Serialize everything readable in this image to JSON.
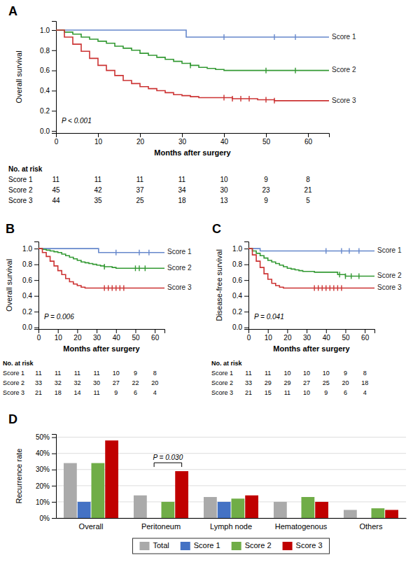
{
  "chart_data": [
    {
      "type": "line",
      "line_style": "step",
      "title": "A",
      "xlabel": "Months after surgery",
      "ylabel": "Overall survival",
      "annotations": [
        {
          "text": "P < 0.001"
        }
      ],
      "xlim": [
        0,
        65
      ],
      "ylim": [
        -0.02,
        1.09
      ],
      "xticks": [
        0,
        10,
        20,
        30,
        40,
        50,
        60
      ],
      "yticks": [
        {
          "value": 0.0,
          "label": "0.0"
        },
        0.2,
        0.4,
        0.6,
        0.8,
        {
          "value": 1.0,
          "label": "1.0"
        }
      ],
      "grid": false,
      "series": [
        {
          "name": "Score 1",
          "color": "#6688cc",
          "x": [
            0,
            30,
            31,
            60,
            65
          ],
          "values": [
            1.0,
            1.0,
            0.93,
            0.93,
            0.93
          ],
          "censors": [
            40,
            52,
            57
          ]
        },
        {
          "name": "Score 2",
          "color": "#339933",
          "x": [
            0,
            2,
            4,
            6,
            8,
            10,
            12,
            14,
            16,
            18,
            20,
            22,
            24,
            26,
            28,
            30,
            32,
            34,
            36,
            38,
            40,
            42,
            44,
            46,
            48,
            50,
            52,
            54,
            56,
            58,
            60,
            65
          ],
          "values": [
            1.0,
            0.98,
            0.96,
            0.93,
            0.91,
            0.89,
            0.87,
            0.84,
            0.82,
            0.8,
            0.77,
            0.75,
            0.73,
            0.71,
            0.69,
            0.67,
            0.65,
            0.63,
            0.62,
            0.61,
            0.6,
            0.6,
            0.6,
            0.6,
            0.6,
            0.6,
            0.6,
            0.6,
            0.6,
            0.6,
            0.6,
            0.6
          ],
          "censors": [
            32,
            50,
            57
          ]
        },
        {
          "name": "Score 3",
          "color": "#cc3333",
          "x": [
            0,
            2,
            4,
            6,
            8,
            10,
            12,
            14,
            16,
            18,
            20,
            22,
            24,
            26,
            28,
            30,
            32,
            34,
            36,
            38,
            40,
            42,
            44,
            46,
            48,
            50,
            52,
            54,
            56,
            58,
            60,
            65
          ],
          "values": [
            1.0,
            0.93,
            0.86,
            0.79,
            0.72,
            0.65,
            0.6,
            0.55,
            0.5,
            0.47,
            0.44,
            0.42,
            0.4,
            0.38,
            0.36,
            0.35,
            0.34,
            0.33,
            0.33,
            0.33,
            0.33,
            0.32,
            0.32,
            0.32,
            0.31,
            0.31,
            0.3,
            0.3,
            0.3,
            0.3,
            0.3,
            0.3
          ],
          "censors": [
            40,
            42,
            44,
            46,
            50,
            52
          ]
        }
      ],
      "at_risk": {
        "header": "No. at risk",
        "values": [
          [
            11,
            11,
            11,
            11,
            10,
            9,
            8
          ],
          [
            45,
            42,
            37,
            34,
            30,
            23,
            21
          ],
          [
            44,
            35,
            25,
            18,
            13,
            9,
            5
          ]
        ]
      }
    },
    {
      "type": "line",
      "line_style": "step",
      "title": "B",
      "xlabel": "Months after surgery",
      "ylabel": "Overall survival",
      "annotations": [
        {
          "text": "P = 0.006"
        }
      ],
      "xlim": [
        0,
        65
      ],
      "ylim": [
        -0.02,
        1.09
      ],
      "xticks": [
        0,
        10,
        20,
        30,
        40,
        50,
        60
      ],
      "yticks": [
        {
          "value": 0.0,
          "label": "0.0"
        },
        0.2,
        0.4,
        0.6,
        0.8,
        {
          "value": 1.0,
          "label": "1.0"
        }
      ],
      "grid": false,
      "series": [
        {
          "name": "Score 1",
          "color": "#6688cc",
          "x": [
            0,
            30,
            31,
            60,
            65
          ],
          "values": [
            1.0,
            1.0,
            0.95,
            0.95,
            0.95
          ],
          "censors": [
            40,
            52,
            57
          ]
        },
        {
          "name": "Score 2",
          "color": "#339933",
          "x": [
            0,
            2,
            4,
            6,
            8,
            10,
            12,
            14,
            16,
            18,
            20,
            22,
            24,
            26,
            28,
            30,
            32,
            34,
            36,
            38,
            40,
            42,
            44,
            46,
            48,
            50,
            52,
            54,
            56,
            58,
            60,
            65
          ],
          "values": [
            1.0,
            0.99,
            0.98,
            0.97,
            0.96,
            0.95,
            0.93,
            0.91,
            0.89,
            0.87,
            0.85,
            0.83,
            0.82,
            0.81,
            0.8,
            0.79,
            0.78,
            0.77,
            0.77,
            0.76,
            0.75,
            0.75,
            0.75,
            0.75,
            0.75,
            0.75,
            0.75,
            0.75,
            0.75,
            0.75,
            0.75,
            0.75
          ],
          "censors": [
            34,
            50,
            52,
            55
          ]
        },
        {
          "name": "Score 3",
          "color": "#cc3333",
          "x": [
            0,
            2,
            4,
            6,
            8,
            10,
            12,
            14,
            16,
            18,
            20,
            22,
            24,
            26,
            28,
            30,
            32,
            34,
            36,
            38,
            40,
            42,
            44,
            46,
            48,
            50,
            52,
            54,
            56,
            58,
            60,
            65
          ],
          "values": [
            1.0,
            0.95,
            0.9,
            0.84,
            0.78,
            0.72,
            0.67,
            0.62,
            0.58,
            0.55,
            0.53,
            0.51,
            0.5,
            0.5,
            0.5,
            0.5,
            0.5,
            0.5,
            0.5,
            0.5,
            0.5,
            0.5,
            0.5,
            0.5,
            0.5,
            0.5,
            0.5,
            0.5,
            0.5,
            0.5,
            0.5,
            0.5
          ],
          "censors": [
            34,
            36,
            38,
            40,
            42,
            44
          ]
        }
      ],
      "at_risk": {
        "header": "No. at risk",
        "values": [
          [
            11,
            11,
            11,
            11,
            10,
            9,
            8
          ],
          [
            33,
            32,
            32,
            30,
            27,
            22,
            20
          ],
          [
            21,
            18,
            14,
            11,
            9,
            6,
            4
          ]
        ]
      }
    },
    {
      "type": "line",
      "line_style": "step",
      "title": "C",
      "xlabel": "Months after surgery",
      "ylabel": "Disease-free survival",
      "annotations": [
        {
          "text": "P = 0.041"
        }
      ],
      "xlim": [
        0,
        65
      ],
      "ylim": [
        -0.02,
        1.09
      ],
      "xticks": [
        0,
        10,
        20,
        30,
        40,
        50,
        60
      ],
      "yticks": [
        {
          "value": 0.0,
          "label": "0.0"
        },
        0.2,
        0.4,
        0.6,
        0.8,
        {
          "value": 1.0,
          "label": "1.0"
        }
      ],
      "grid": false,
      "series": [
        {
          "name": "Score 1",
          "color": "#6688cc",
          "x": [
            0,
            5,
            6,
            60,
            65
          ],
          "values": [
            1.0,
            1.0,
            0.97,
            0.97,
            0.97
          ],
          "censors": [
            40,
            48,
            52,
            57
          ]
        },
        {
          "name": "Score 2",
          "color": "#339933",
          "x": [
            0,
            2,
            4,
            6,
            8,
            10,
            12,
            14,
            16,
            18,
            20,
            22,
            24,
            26,
            28,
            30,
            32,
            34,
            36,
            38,
            40,
            42,
            44,
            46,
            48,
            50,
            52,
            54,
            56,
            58,
            60,
            65
          ],
          "values": [
            1.0,
            0.97,
            0.94,
            0.91,
            0.88,
            0.85,
            0.83,
            0.81,
            0.79,
            0.77,
            0.75,
            0.74,
            0.73,
            0.72,
            0.71,
            0.71,
            0.71,
            0.7,
            0.7,
            0.7,
            0.7,
            0.7,
            0.7,
            0.67,
            0.67,
            0.65,
            0.65,
            0.65,
            0.65,
            0.65,
            0.65,
            0.65
          ],
          "censors": [
            47,
            50,
            53,
            57
          ]
        },
        {
          "name": "Score 3",
          "color": "#cc3333",
          "x": [
            0,
            2,
            4,
            6,
            8,
            10,
            12,
            14,
            16,
            18,
            20,
            22,
            24,
            26,
            28,
            30,
            32,
            34,
            36,
            38,
            40,
            42,
            44,
            46,
            48,
            50,
            52,
            54,
            56,
            58,
            60,
            65
          ],
          "values": [
            1.0,
            0.92,
            0.84,
            0.76,
            0.68,
            0.61,
            0.56,
            0.53,
            0.51,
            0.5,
            0.5,
            0.5,
            0.5,
            0.5,
            0.5,
            0.5,
            0.5,
            0.5,
            0.5,
            0.5,
            0.5,
            0.5,
            0.5,
            0.5,
            0.5,
            0.5,
            0.5,
            0.5,
            0.5,
            0.5,
            0.5,
            0.5
          ],
          "censors": [
            34,
            36,
            38,
            40,
            42,
            44,
            46,
            48
          ]
        }
      ],
      "at_risk": {
        "header": "No. at risk",
        "values": [
          [
            11,
            11,
            10,
            10,
            10,
            9,
            8
          ],
          [
            33,
            29,
            29,
            27,
            25,
            20,
            18
          ],
          [
            21,
            15,
            11,
            10,
            9,
            6,
            4
          ]
        ]
      }
    },
    {
      "type": "bar",
      "title": "D",
      "ylabel": "Recurrence rate",
      "categories": [
        "Overall",
        "Peritoneum",
        "Lymph node",
        "Hematogenous",
        "Others"
      ],
      "series": [
        {
          "name": "Total",
          "color": "#aaaaaa",
          "values": [
            0.34,
            0.14,
            0.13,
            0.1,
            0.05
          ]
        },
        {
          "name": "Score 1",
          "color": "#4472c4",
          "values": [
            0.1,
            0.0,
            0.1,
            0.0,
            0.0
          ]
        },
        {
          "name": "Score 2",
          "color": "#70ad47",
          "values": [
            0.34,
            0.1,
            0.12,
            0.13,
            0.06
          ]
        },
        {
          "name": "Score 3",
          "color": "#c00000",
          "values": [
            0.48,
            0.29,
            0.14,
            0.1,
            0.05
          ]
        }
      ],
      "annotations": [
        {
          "text": "P = 0.030",
          "category": "Peritoneum",
          "series": [
            "Score 1",
            "Score 3"
          ]
        }
      ],
      "ylim": [
        0,
        0.52
      ],
      "yticks": [
        {
          "value": 0.0,
          "label": "0%"
        },
        {
          "value": 0.1,
          "label": "10%"
        },
        {
          "value": 0.2,
          "label": "20%"
        },
        {
          "value": 0.3,
          "label": "30%"
        },
        {
          "value": 0.4,
          "label": "40%"
        },
        {
          "value": 0.5,
          "label": "50%"
        }
      ],
      "grid": true,
      "legend": "bottom"
    }
  ]
}
